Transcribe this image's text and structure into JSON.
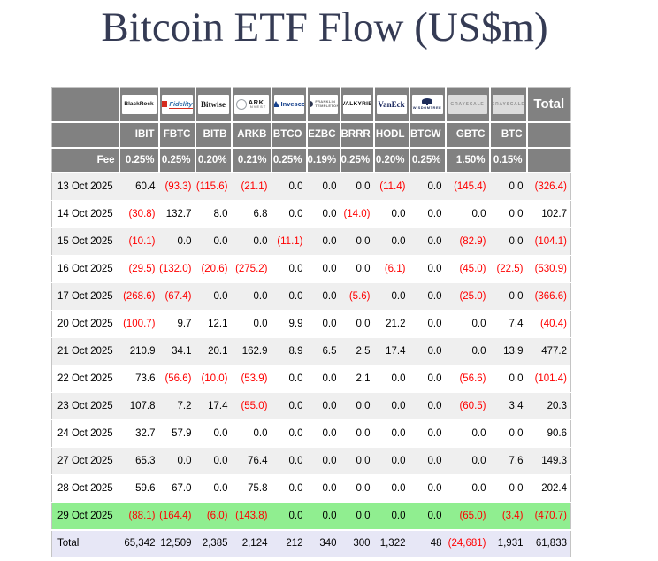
{
  "title": "Bitcoin ETF Flow (US$m)",
  "colors": {
    "title_text": "#353b54",
    "header_bg": "#818181",
    "header_text": "#ffffff",
    "row_stripe": "#efefef",
    "highlight_green": "#90ee90",
    "total_row_bg": "#e7e7f6",
    "negative_red": "#ff0000"
  },
  "chart_data": {
    "type": "table",
    "title": "Bitcoin ETF Flow (US$m)",
    "total_header": "Total",
    "fee_label": "Fee",
    "negative_format": "parentheses-red",
    "funds": [
      {
        "logo": "BlackRock",
        "ticker": "IBIT",
        "fee": "0.25%"
      },
      {
        "logo": "Fidelity",
        "ticker": "FBTC",
        "fee": "0.25%"
      },
      {
        "logo": "Bitwise",
        "ticker": "BITB",
        "fee": "0.20%"
      },
      {
        "logo": "ARK",
        "logo2": "INVEST",
        "ticker": "ARKB",
        "fee": "0.21%"
      },
      {
        "logo": "Invesco",
        "ticker": "BTCO",
        "fee": "0.25%"
      },
      {
        "logo": "FRANKLIN",
        "logo2": "TEMPLETON",
        "ticker": "EZBC",
        "fee": "0.19%"
      },
      {
        "logo": "VALKYRIE",
        "ticker": "BRRR",
        "fee": "0.25%"
      },
      {
        "logo": "VanEck",
        "ticker": "HODL",
        "fee": "0.20%"
      },
      {
        "logo": "WISDOMTREE",
        "ticker": "BTCW",
        "fee": "0.25%"
      },
      {
        "logo": "GRAYSCALE",
        "ticker": "GBTC",
        "fee": "1.50%"
      },
      {
        "logo": "GRAYSCALE",
        "ticker": "BTC",
        "fee": "0.15%"
      }
    ],
    "rows": [
      {
        "date": "13 Oct 2025",
        "values": [
          "60.4",
          "(93.3)",
          "(115.6)",
          "(21.1)",
          "0.0",
          "0.0",
          "0.0",
          "(11.4)",
          "0.0",
          "(145.4)",
          "0.0",
          "(326.4)"
        ]
      },
      {
        "date": "14 Oct 2025",
        "values": [
          "(30.8)",
          "132.7",
          "8.0",
          "6.8",
          "0.0",
          "0.0",
          "(14.0)",
          "0.0",
          "0.0",
          "0.0",
          "0.0",
          "102.7"
        ]
      },
      {
        "date": "15 Oct 2025",
        "values": [
          "(10.1)",
          "0.0",
          "0.0",
          "0.0",
          "(11.1)",
          "0.0",
          "0.0",
          "0.0",
          "0.0",
          "(82.9)",
          "0.0",
          "(104.1)"
        ]
      },
      {
        "date": "16 Oct 2025",
        "values": [
          "(29.5)",
          "(132.0)",
          "(20.6)",
          "(275.2)",
          "0.0",
          "0.0",
          "0.0",
          "(6.1)",
          "0.0",
          "(45.0)",
          "(22.5)",
          "(530.9)"
        ]
      },
      {
        "date": "17 Oct 2025",
        "values": [
          "(268.6)",
          "(67.4)",
          "0.0",
          "0.0",
          "0.0",
          "0.0",
          "(5.6)",
          "0.0",
          "0.0",
          "(25.0)",
          "0.0",
          "(366.6)"
        ]
      },
      {
        "date": "20 Oct 2025",
        "values": [
          "(100.7)",
          "9.7",
          "12.1",
          "0.0",
          "9.9",
          "0.0",
          "0.0",
          "21.2",
          "0.0",
          "0.0",
          "7.4",
          "(40.4)"
        ]
      },
      {
        "date": "21 Oct 2025",
        "values": [
          "210.9",
          "34.1",
          "20.1",
          "162.9",
          "8.9",
          "6.5",
          "2.5",
          "17.4",
          "0.0",
          "0.0",
          "13.9",
          "477.2"
        ]
      },
      {
        "date": "22 Oct 2025",
        "values": [
          "73.6",
          "(56.6)",
          "(10.0)",
          "(53.9)",
          "0.0",
          "0.0",
          "2.1",
          "0.0",
          "0.0",
          "(56.6)",
          "0.0",
          "(101.4)"
        ]
      },
      {
        "date": "23 Oct 2025",
        "values": [
          "107.8",
          "7.2",
          "17.4",
          "(55.0)",
          "0.0",
          "0.0",
          "0.0",
          "0.0",
          "0.0",
          "(60.5)",
          "3.4",
          "20.3"
        ]
      },
      {
        "date": "24 Oct 2025",
        "values": [
          "32.7",
          "57.9",
          "0.0",
          "0.0",
          "0.0",
          "0.0",
          "0.0",
          "0.0",
          "0.0",
          "0.0",
          "0.0",
          "90.6"
        ]
      },
      {
        "date": "27 Oct 2025",
        "values": [
          "65.3",
          "0.0",
          "0.0",
          "76.4",
          "0.0",
          "0.0",
          "0.0",
          "0.0",
          "0.0",
          "0.0",
          "7.6",
          "149.3"
        ]
      },
      {
        "date": "28 Oct 2025",
        "values": [
          "59.6",
          "67.0",
          "0.0",
          "75.8",
          "0.0",
          "0.0",
          "0.0",
          "0.0",
          "0.0",
          "0.0",
          "0.0",
          "202.4"
        ]
      },
      {
        "date": "29 Oct 2025",
        "highlight": "green",
        "values": [
          "(88.1)",
          "(164.4)",
          "(6.0)",
          "(143.8)",
          "0.0",
          "0.0",
          "0.0",
          "0.0",
          "0.0",
          "(65.0)",
          "(3.4)",
          "(470.7)"
        ]
      }
    ],
    "total_row": {
      "label": "Total",
      "values": [
        "65,342",
        "12,509",
        "2,385",
        "2,124",
        "212",
        "340",
        "300",
        "1,322",
        "48",
        "(24,681)",
        "1,931",
        "61,833"
      ]
    }
  }
}
